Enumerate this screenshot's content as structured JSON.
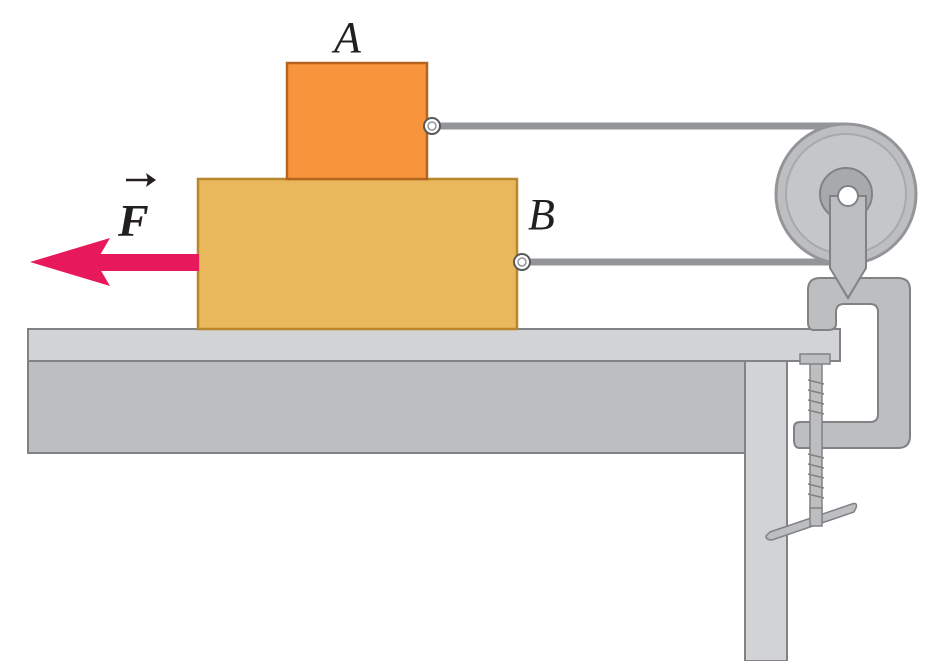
{
  "labels": {
    "block_a": "A",
    "block_b": "B",
    "force": "F"
  },
  "colors": {
    "block_a_fill": "#f7943c",
    "block_a_stroke": "#b5651d",
    "block_b_fill": "#e9b85c",
    "block_b_stroke": "#b8862b",
    "force_arrow": "#e8195a",
    "table_top": "#d1d3d4",
    "table_side": "#bcbec0",
    "table_stroke": "#808285",
    "string": "#939598",
    "pulley_outer": "#bcbec0",
    "pulley_inner": "#a7a9ac",
    "clamp": "#bcbec0",
    "clamp_stroke": "#808285",
    "text": "#231f20"
  },
  "icons": {
    "force_arrow": "left-arrow-icon",
    "vector_arrow": "vector-arrow-icon",
    "pulley": "pulley-icon",
    "clamp": "c-clamp-icon",
    "hook": "eyelet-icon"
  }
}
